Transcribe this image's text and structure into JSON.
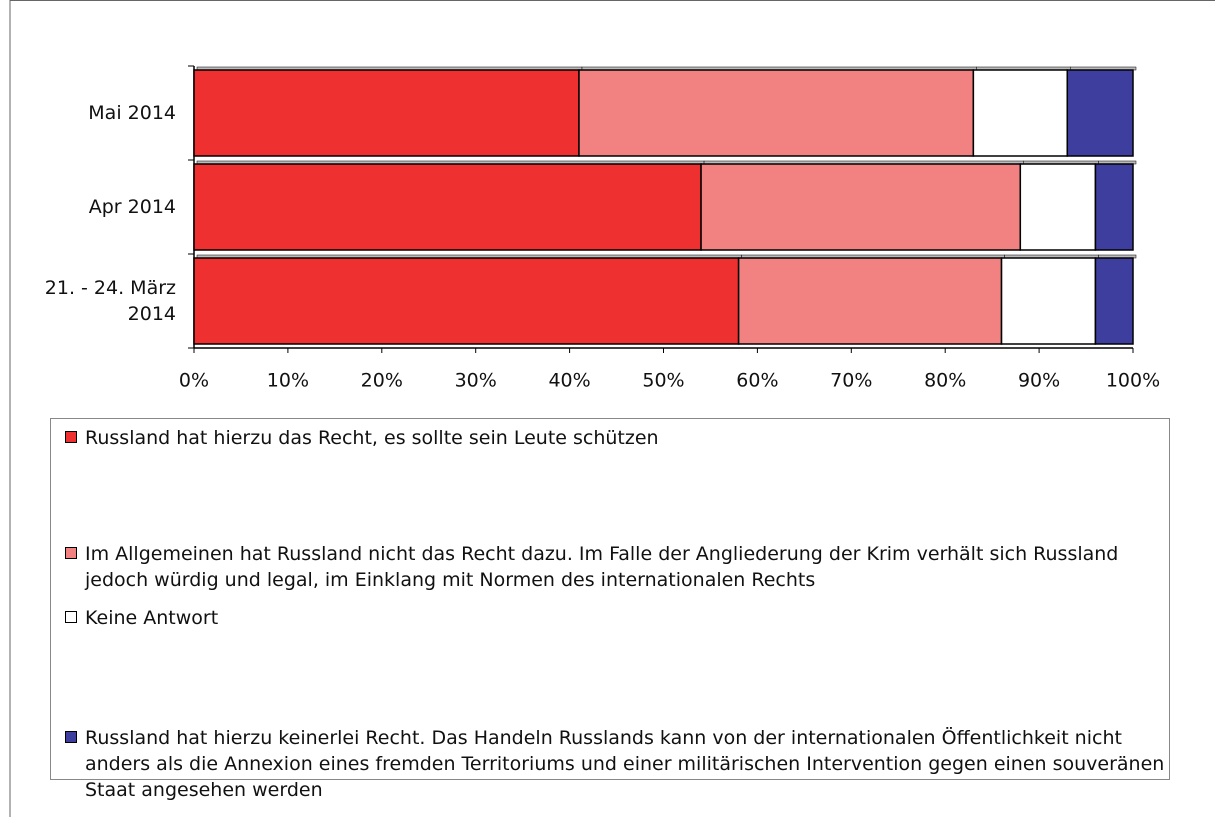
{
  "chart_data": {
    "type": "bar",
    "orientation": "horizontal",
    "stacked": true,
    "categories": [
      "Mai 2014",
      "Apr 2014",
      "21. - 24. März 2014"
    ],
    "series": [
      {
        "name": "Russland hat hierzu das Recht, es sollte sein Leute schützen",
        "color": "#ee3030",
        "values": [
          41,
          54,
          58
        ]
      },
      {
        "name": "Im Allgemeinen hat Russland nicht das Recht dazu. Im Falle der Angliederung der Krim verhält sich Russland jedoch würdig und legal, im Einklang mit Normen des internationalen Rechts",
        "color": "#f28282",
        "values": [
          42,
          34,
          28
        ]
      },
      {
        "name": "Keine Antwort",
        "color": "#ffffff",
        "values": [
          10,
          8,
          10
        ]
      },
      {
        "name": "Russland hat hierzu keinerlei Recht. Das Handeln Russlands kann von der internationalen Öffentlichkeit nicht anders als die Annexion eines fremden Territoriums und einer militärischen Intervention gegen einen souveränen Staat angesehen werden",
        "color": "#3e3e9e",
        "values": [
          7,
          4,
          4
        ]
      }
    ],
    "xlim": [
      0,
      100
    ],
    "xticks": [
      {
        "value": 0,
        "label": "0%"
      },
      {
        "value": 10,
        "label": "10%"
      },
      {
        "value": 20,
        "label": "20%"
      },
      {
        "value": 30,
        "label": "30%"
      },
      {
        "value": 40,
        "label": "40%"
      },
      {
        "value": 50,
        "label": "50%"
      },
      {
        "value": 60,
        "label": "60%"
      },
      {
        "value": 70,
        "label": "70%"
      },
      {
        "value": 80,
        "label": "80%"
      },
      {
        "value": 90,
        "label": "90%"
      },
      {
        "value": 100,
        "label": "100%"
      }
    ]
  }
}
